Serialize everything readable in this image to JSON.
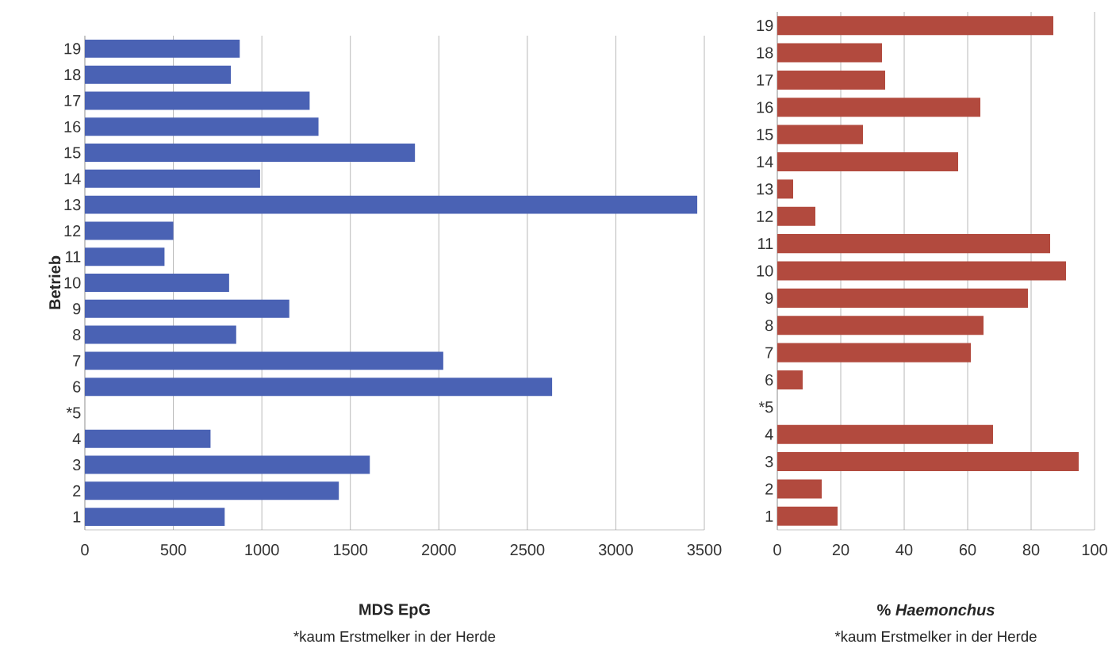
{
  "chart_data": [
    {
      "type": "bar",
      "orientation": "horizontal",
      "ylabel": "Betrieb",
      "xlabel": "MDS EpG",
      "annotations": [
        "*kaum Erstmelker in der Herde"
      ],
      "categories": [
        "19",
        "18",
        "17",
        "16",
        "15",
        "14",
        "13",
        "12",
        "11",
        "10",
        "9",
        "8",
        "7",
        "6",
        "*5",
        "4",
        "3",
        "2",
        "1"
      ],
      "values": [
        875,
        825,
        1270,
        1320,
        1865,
        990,
        3460,
        500,
        450,
        815,
        1155,
        855,
        2025,
        2640,
        null,
        710,
        1610,
        1435,
        790
      ],
      "color": "#4a62b4",
      "xlim": [
        0,
        3500
      ],
      "xticks": [
        0,
        500,
        1000,
        1500,
        2000,
        2500,
        3000,
        3500
      ],
      "grid": "x"
    },
    {
      "type": "bar",
      "orientation": "horizontal",
      "xlabel": "% *Haemonchus*",
      "annotations": [
        "*kaum Erstmelker in der Herde"
      ],
      "categories": [
        "19",
        "18",
        "17",
        "16",
        "15",
        "14",
        "13",
        "12",
        "11",
        "10",
        "9",
        "8",
        "7",
        "6",
        "*5",
        "4",
        "3",
        "2",
        "1"
      ],
      "values": [
        87,
        33,
        34,
        64,
        27,
        57,
        5,
        12,
        86,
        91,
        79,
        65,
        61,
        8,
        null,
        68,
        95,
        14,
        19
      ],
      "color": "#b24a3e",
      "xlim": [
        0,
        100
      ],
      "xticks": [
        0,
        20,
        40,
        60,
        80,
        100
      ],
      "grid": "x"
    }
  ]
}
